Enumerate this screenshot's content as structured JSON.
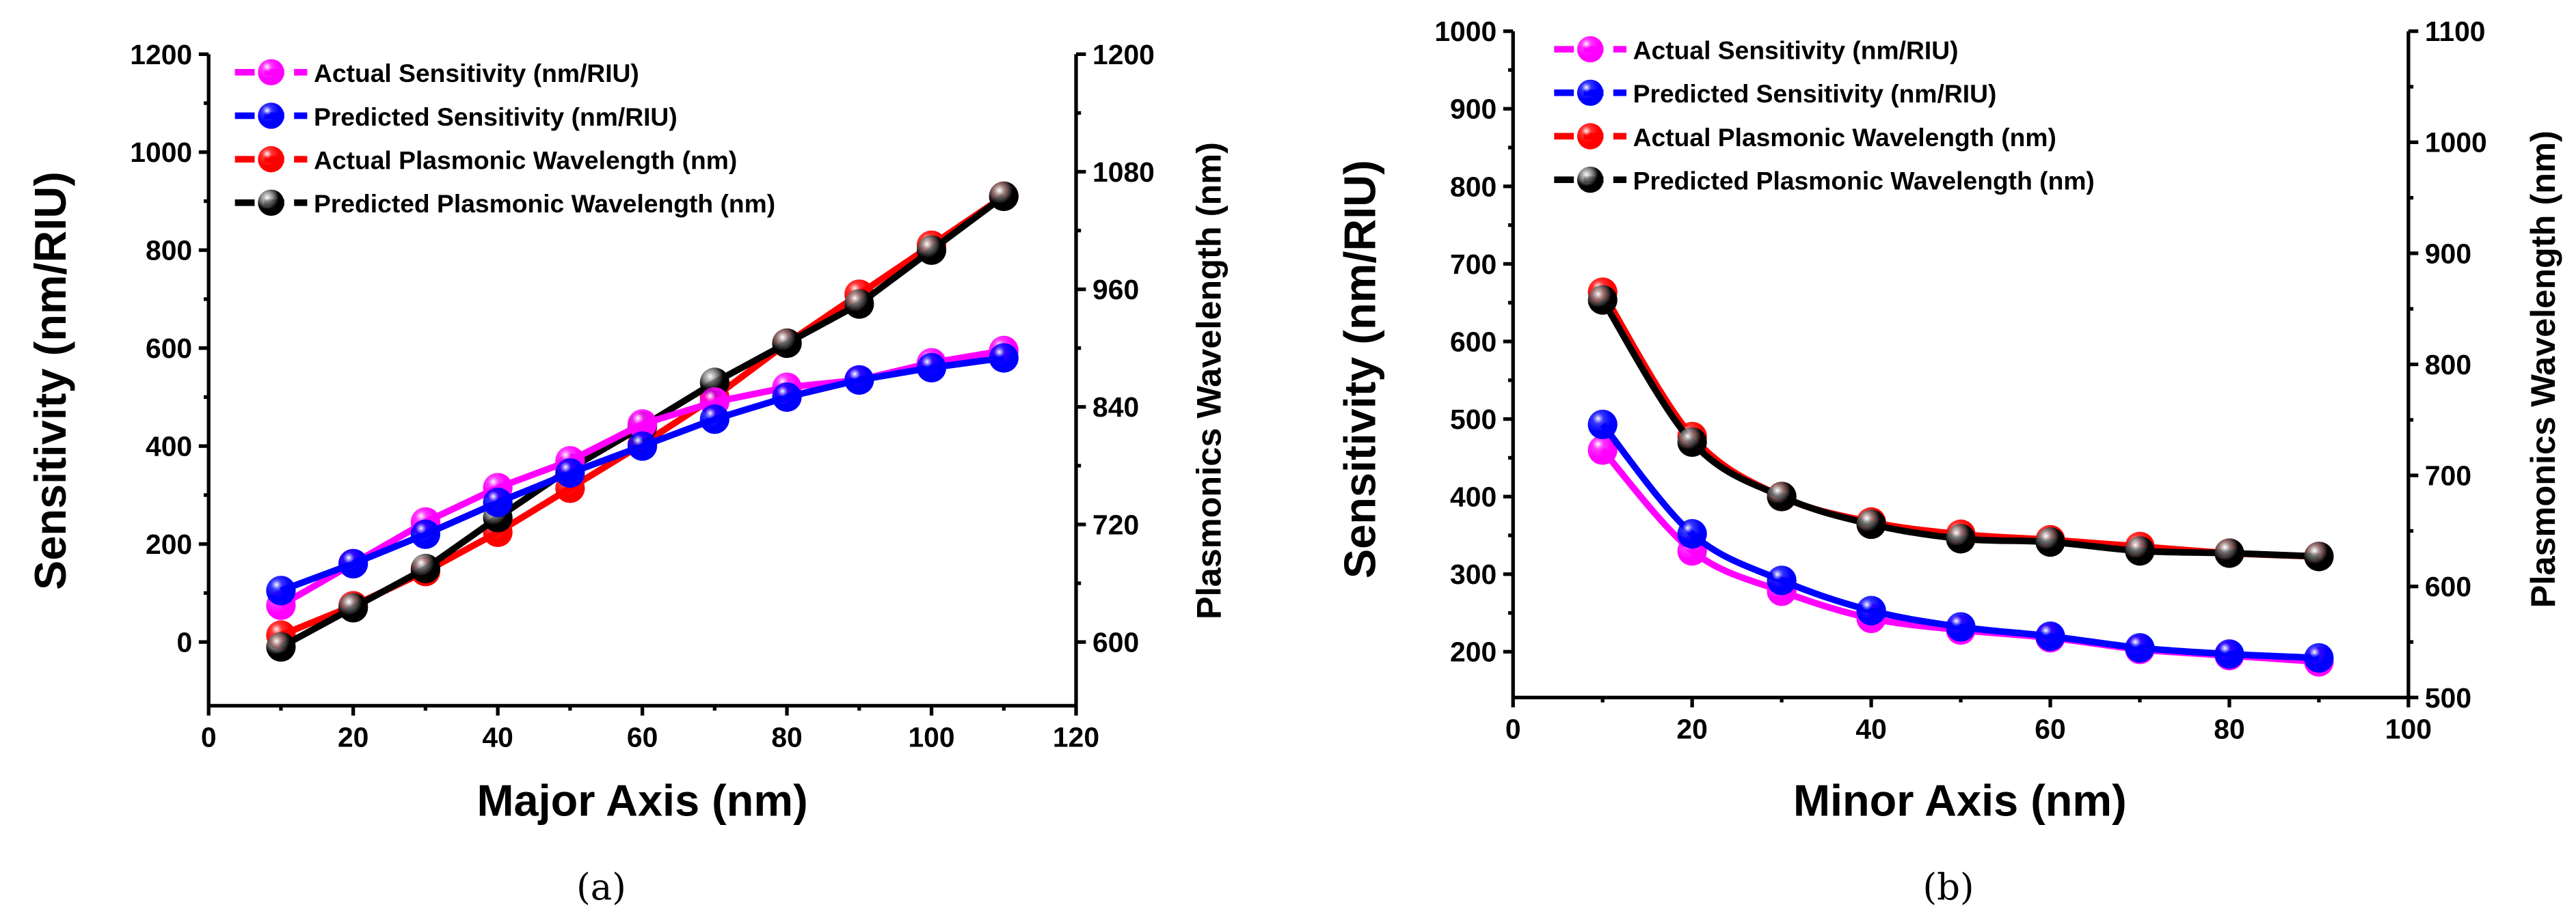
{
  "colors": {
    "actual_sensitivity": "#ff00ff",
    "predicted_sensitivity": "#0000ff",
    "actual_wavelength": "#ff0000",
    "predicted_wavelength": "#000000"
  },
  "chart_data": [
    {
      "type": "line",
      "caption": "(a)",
      "xlabel": "Major Axis (nm)",
      "ylabel": "Sensitivity (nm/RIU)",
      "y2label": "Plasmonics Wavelength (nm)",
      "xlim": [
        0,
        120
      ],
      "ylim": [
        -130,
        1200
      ],
      "y2lim": [
        535,
        1200
      ],
      "xticks": [
        0,
        20,
        40,
        60,
        80,
        100,
        120
      ],
      "yticks": [
        0,
        200,
        400,
        600,
        800,
        1000,
        1200
      ],
      "y2ticks": [
        600,
        720,
        840,
        960,
        1080,
        1200
      ],
      "legend_position": "top-left",
      "x": [
        10,
        20,
        30,
        40,
        50,
        60,
        70,
        80,
        90,
        100,
        110
      ],
      "series": [
        {
          "name": "Actual Sensitivity (nm/RIU)",
          "axis": "left",
          "color_key": "actual_sensitivity",
          "values": [
            75,
            160,
            245,
            315,
            370,
            445,
            490,
            520,
            535,
            570,
            595
          ]
        },
        {
          "name": "Predicted Sensitivity (nm/RIU)",
          "axis": "left",
          "color_key": "predicted_sensitivity",
          "values": [
            105,
            160,
            220,
            285,
            345,
            400,
            455,
            500,
            535,
            560,
            580
          ]
        },
        {
          "name": "Actual Plasmonic Wavelength (nm)",
          "axis": "right",
          "color_key": "actual_wavelength",
          "values": [
            607,
            637,
            672,
            712,
            757,
            802,
            850,
            905,
            955,
            1005,
            1055
          ]
        },
        {
          "name": "Predicted Plasmonic Wavelength (nm)",
          "axis": "right",
          "color_key": "predicted_wavelength",
          "values": [
            595,
            635,
            675,
            727,
            777,
            820,
            865,
            905,
            945,
            1000,
            1055
          ]
        }
      ]
    },
    {
      "type": "line",
      "caption": "(b)",
      "xlabel": "Minor Axis (nm)",
      "ylabel": "Sensitivity (nm/RIU)",
      "y2label": "Plasmonics Wavelength (nm)",
      "xlim": [
        0,
        100
      ],
      "ylim": [
        141,
        1000
      ],
      "y2lim": [
        500,
        1100
      ],
      "xticks": [
        0,
        20,
        40,
        60,
        80,
        100
      ],
      "yticks": [
        200,
        300,
        400,
        500,
        600,
        700,
        800,
        900,
        1000
      ],
      "y2ticks": [
        500,
        600,
        700,
        800,
        900,
        1000,
        1100
      ],
      "legend_position": "top-left",
      "x": [
        10,
        20,
        30,
        40,
        50,
        60,
        70,
        80,
        90
      ],
      "series": [
        {
          "name": "Actual Sensitivity (nm/RIU)",
          "axis": "left",
          "color_key": "actual_sensitivity",
          "values": [
            460,
            330,
            278,
            243,
            228,
            218,
            203,
            195,
            187
          ]
        },
        {
          "name": "Predicted Sensitivity (nm/RIU)",
          "axis": "left",
          "color_key": "predicted_sensitivity",
          "values": [
            493,
            352,
            292,
            253,
            232,
            220,
            205,
            197,
            192
          ]
        },
        {
          "name": "Actual Plasmonic Wavelength (nm)",
          "axis": "right",
          "color_key": "actual_wavelength",
          "values": [
            865,
            735,
            681,
            658,
            647,
            642,
            636,
            630,
            627
          ]
        },
        {
          "name": "Predicted Plasmonic Wavelength (nm)",
          "axis": "right",
          "color_key": "predicted_wavelength",
          "values": [
            858,
            730,
            681,
            656,
            643,
            640,
            632,
            630,
            627
          ]
        }
      ]
    }
  ]
}
